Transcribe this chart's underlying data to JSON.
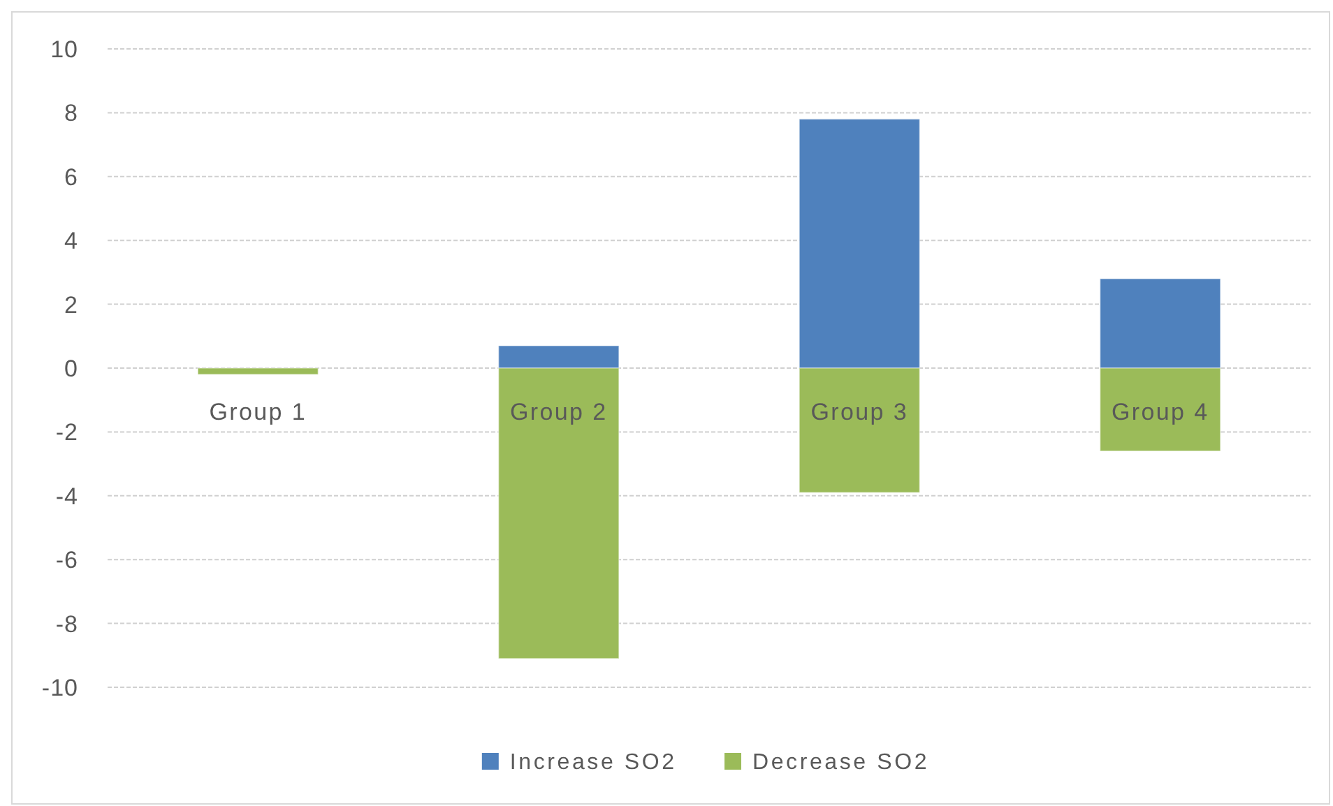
{
  "chart_data": {
    "type": "bar",
    "stacked": true,
    "categories": [
      "Group 1",
      "Group 2",
      "Group 3",
      "Group 4"
    ],
    "series": [
      {
        "name": "Increase SO2",
        "color": "#4f81bd",
        "values": [
          null,
          0.7,
          7.8,
          2.8
        ]
      },
      {
        "name": "Decrease SO2",
        "color": "#9bbb59",
        "values": [
          -0.2,
          -9.1,
          -3.9,
          -2.6
        ]
      }
    ],
    "ylim": [
      -10,
      10
    ],
    "yticks": [
      -10,
      -8,
      -6,
      -4,
      -2,
      0,
      2,
      4,
      6,
      8,
      10
    ],
    "grid": "y",
    "legend": "bottom"
  }
}
